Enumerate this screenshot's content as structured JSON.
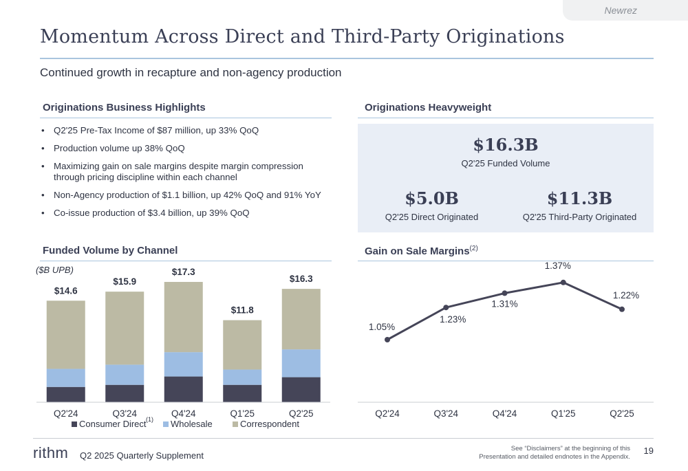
{
  "brand_tag": "Newrez",
  "title": "Momentum Across Direct and Third-Party Originations",
  "subtitle": "Continued growth in recapture and non-agency production",
  "highlights": {
    "heading": "Originations Business Highlights",
    "items": [
      "Q2'25 Pre-Tax Income of $87 million, up 33% QoQ",
      "Production volume up 38% QoQ",
      "Maximizing gain on sale margins despite margin compression through pricing discipline within each channel",
      "Non-Agency production of $1.1 billion, up 42% QoQ and 91% YoY",
      "Co-issue production of $3.4 billion, up 39% QoQ"
    ]
  },
  "heavyweight": {
    "heading": "Originations Heavyweight",
    "funded_value": "$16.3B",
    "funded_label": "Q2'25 Funded Volume",
    "direct_value": "$5.0B",
    "direct_label": "Q2'25 Direct Originated",
    "third_value": "$11.3B",
    "third_label": "Q2'25 Third-Party Originated"
  },
  "funded_heading": "Funded Volume by Channel",
  "gos_heading": "Gain on Sale Margins",
  "gos_heading_sup": "(2)",
  "colors": {
    "consumer_direct": "#454558",
    "wholesale": "#9dbde3",
    "correspondent": "#bcbaa4",
    "line": "#454558",
    "accent_rule": "#a9c4de"
  },
  "chart_data": [
    {
      "type": "bar",
      "stacked": true,
      "unit_label": "($B UPB)",
      "categories": [
        "Q2'24",
        "Q3'24",
        "Q4'24",
        "Q1'25",
        "Q2'25"
      ],
      "series": [
        {
          "name": "Consumer Direct",
          "name_sup": "(1)",
          "values": [
            2.2,
            2.5,
            3.7,
            2.5,
            3.6
          ]
        },
        {
          "name": "Wholesale",
          "values": [
            2.6,
            2.9,
            3.5,
            2.2,
            4.0
          ]
        },
        {
          "name": "Correspondent",
          "values": [
            9.8,
            10.5,
            10.1,
            7.1,
            8.7
          ]
        }
      ],
      "totals": [
        "$14.6",
        "$15.9",
        "$17.3",
        "$11.8",
        "$16.3"
      ],
      "total_values": [
        14.6,
        15.9,
        17.3,
        11.8,
        16.3
      ],
      "ylim": [
        0,
        17.3
      ],
      "legend": "bottom"
    },
    {
      "type": "line",
      "categories": [
        "Q2'24",
        "Q3'24",
        "Q4'24",
        "Q1'25",
        "Q2'25"
      ],
      "values": [
        1.05,
        1.23,
        1.31,
        1.37,
        1.22
      ],
      "labels": [
        "1.05%",
        "1.23%",
        "1.31%",
        "1.37%",
        "1.22%"
      ],
      "ylim": [
        0.9,
        1.45
      ]
    }
  ],
  "footer": {
    "logo": "rithm",
    "supplement": "Q2 2025 Quarterly Supplement",
    "disclaimer_line1": "See “Disclaimers” at the beginning of this",
    "disclaimer_line2": "Presentation and detailed endnotes in the Appendix.",
    "page_number": "19"
  }
}
